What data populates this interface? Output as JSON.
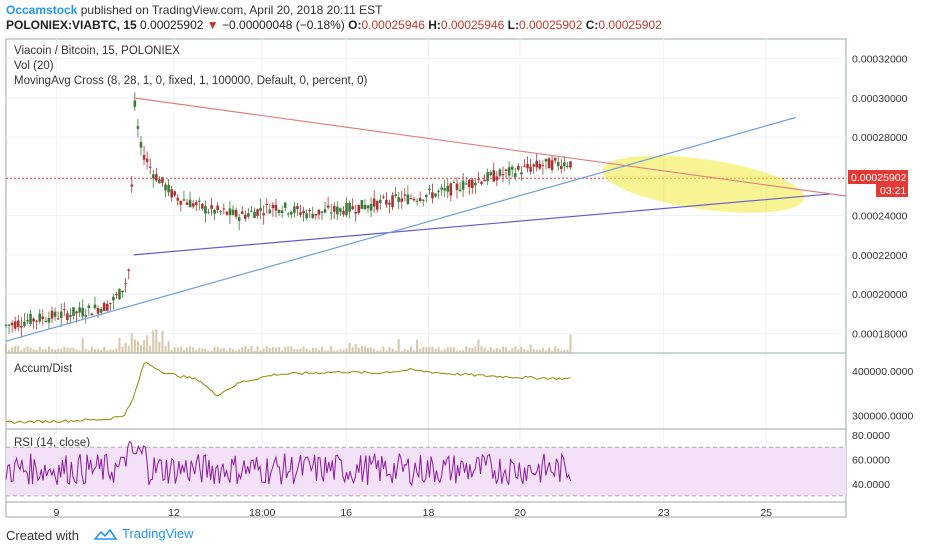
{
  "header": {
    "author": "Occamstock",
    "published_text": "published on TradingView.com, April 20, 2018 20:11 EST",
    "symbol": "POLONIEX:VIABTC, 15",
    "price": "0.00025902",
    "change_arrow": "▼",
    "change": "−0.00000048 (−0.18%)",
    "open_label": "O:",
    "open": "0.00025946",
    "high_label": "H:",
    "high": "0.00025946",
    "low_label": "L:",
    "low": "0.00025902",
    "close_label": "C:",
    "close": "0.00025902"
  },
  "legend": {
    "title": "Viacoin / Bitcoin, 15, POLONIEX",
    "vol": "Vol (20)",
    "ma": "MovingAvg Cross (8, 28, 1, 0, fixed, 1, 100000, Default, 0, percent, 0)",
    "accum": "Accum/Dist",
    "rsi": "RSI (14, close)"
  },
  "price_badge": {
    "price": "0.00025902",
    "countdown": "03:21"
  },
  "colors": {
    "candle": "#3d7a3a",
    "resistance": "#e08080",
    "support": "#6a5acd",
    "trend": "#6aa0dc",
    "ellipse": "#f2e93a",
    "accum": "#8b8b00",
    "rsi": "#8b1a9c",
    "rsi_band": "#f2e1f7"
  },
  "footer": {
    "created_with": "Created with",
    "brand": "TradingView",
    "logo_icon": "tradingview-cloud-icon"
  },
  "chart_data": [
    {
      "type": "candlestick",
      "title": "Viacoin / Bitcoin, 15, POLONIEX",
      "y_ticks": [
        "0.00032000",
        "0.00030000",
        "0.00028000",
        "0.00026000",
        "0.00024000",
        "0.00022000",
        "0.00020000",
        "0.00018000"
      ],
      "ylim": [
        0.00017,
        0.00033
      ],
      "x_ticks": [
        "9",
        "12",
        "18:00",
        "16",
        "18",
        "20",
        "23",
        "25"
      ],
      "last_price": 0.00025902,
      "trend_path": [
        [
          0.000184,
          0
        ],
        [
          0.000187,
          0.03
        ],
        [
          0.000189,
          0.06
        ],
        [
          0.000191,
          0.09
        ],
        [
          0.000194,
          0.12
        ],
        [
          0.0002,
          0.135
        ],
        [
          0.000208,
          0.145
        ],
        [
          0.00022,
          0.148
        ],
        [
          0.0003,
          0.152
        ],
        [
          0.000275,
          0.16
        ],
        [
          0.000262,
          0.175
        ],
        [
          0.00025,
          0.2
        ],
        [
          0.000243,
          0.24
        ],
        [
          0.00024,
          0.28
        ],
        [
          0.000245,
          0.32
        ],
        [
          0.000241,
          0.36
        ],
        [
          0.000243,
          0.4
        ],
        [
          0.000246,
          0.44
        ],
        [
          0.000249,
          0.48
        ],
        [
          0.000252,
          0.52
        ],
        [
          0.000258,
          0.56
        ],
        [
          0.000262,
          0.6
        ],
        [
          0.000266,
          0.64
        ],
        [
          0.000267,
          0.67
        ],
        [
          0.000265,
          0.7
        ],
        [
          0.000259,
          0.72
        ]
      ],
      "lines": [
        {
          "name": "resistance",
          "from": [
            0.0003,
            0.152
          ],
          "to": [
            0.00025,
            1.0
          ]
        },
        {
          "name": "support",
          "from": [
            0.00022,
            0.152
          ],
          "to": [
            0.000251,
            0.98
          ]
        },
        {
          "name": "rising-trendline",
          "from": [
            0.000176,
            0.0
          ],
          "to": [
            0.00029,
            0.94
          ]
        }
      ]
    },
    {
      "type": "line",
      "title": "Accum/Dist",
      "y_ticks": [
        "400000.0000",
        "300000.0000"
      ],
      "ylim": [
        270000,
        440000
      ],
      "path": [
        [
          285000,
          0
        ],
        [
          288000,
          0.07
        ],
        [
          292000,
          0.12
        ],
        [
          300000,
          0.14
        ],
        [
          330000,
          0.15
        ],
        [
          420000,
          0.165
        ],
        [
          395000,
          0.19
        ],
        [
          380000,
          0.23
        ],
        [
          345000,
          0.25
        ],
        [
          375000,
          0.28
        ],
        [
          392000,
          0.32
        ],
        [
          398000,
          0.4
        ],
        [
          395000,
          0.44
        ],
        [
          402000,
          0.48
        ],
        [
          395000,
          0.52
        ],
        [
          390000,
          0.56
        ],
        [
          385000,
          0.62
        ],
        [
          382000,
          0.68
        ],
        [
          382000,
          0.72
        ]
      ]
    },
    {
      "type": "line",
      "title": "RSI (14, close)",
      "y_ticks": [
        "80.0000",
        "60.0000",
        "40.0000"
      ],
      "ylim": [
        25,
        85
      ],
      "bands": [
        30,
        70
      ],
      "value_range": [
        35,
        80
      ]
    }
  ]
}
